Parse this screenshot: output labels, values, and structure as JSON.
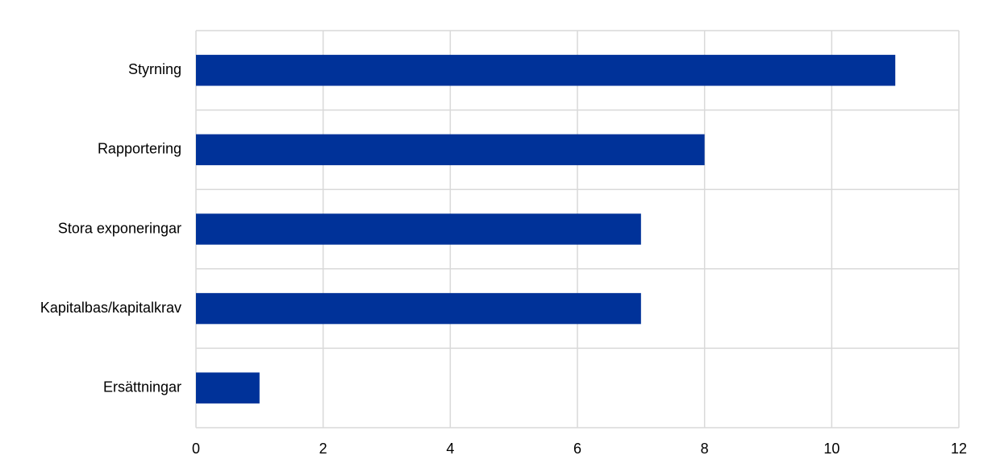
{
  "chart_data": {
    "type": "barh",
    "categories": [
      "Styrning",
      "Rapportering",
      "Stora exponeringar",
      "Kapitalbas/kapitalkrav",
      "Ersättningar"
    ],
    "values": [
      11,
      8,
      7,
      7,
      1
    ],
    "color": "#003299",
    "xlim": [
      0,
      12
    ],
    "xticks": [
      0,
      2,
      4,
      6,
      8,
      10,
      12
    ],
    "grid": true
  }
}
